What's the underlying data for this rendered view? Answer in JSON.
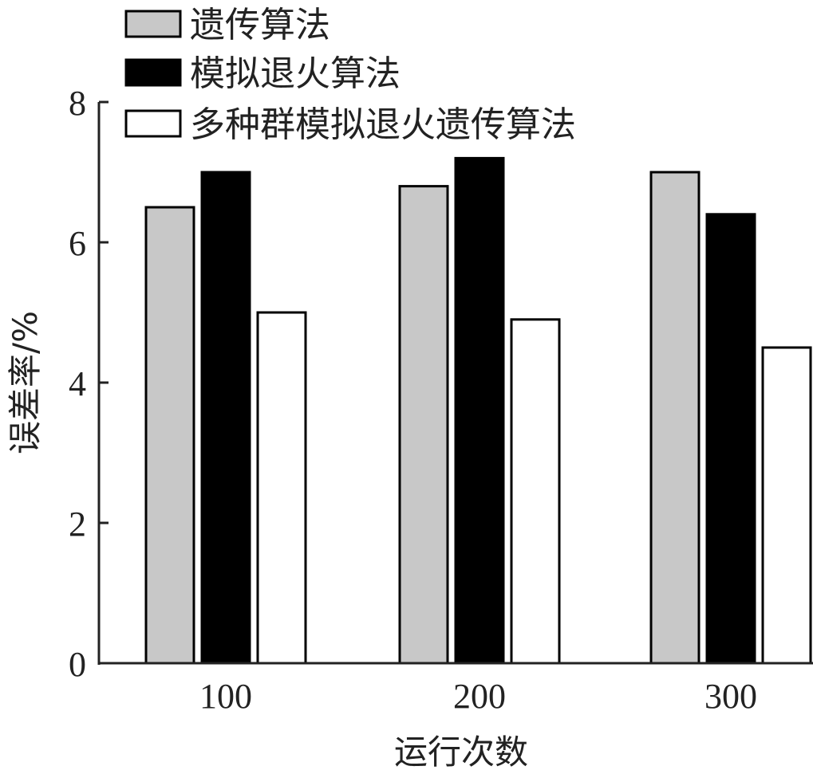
{
  "chart_data": {
    "type": "bar",
    "categories": [
      "100",
      "200",
      "300"
    ],
    "series": [
      {
        "name": "遗传算法",
        "values": [
          6.5,
          6.8,
          7.0
        ],
        "color": "#c8c8c8"
      },
      {
        "name": "模拟退火算法",
        "values": [
          7.0,
          7.2,
          6.4
        ],
        "color": "#000000"
      },
      {
        "name": "多种群模拟退火遗传算法",
        "values": [
          5.0,
          4.9,
          4.5
        ],
        "color": "#ffffff"
      }
    ],
    "xlabel": "运行次数",
    "ylabel": "误差率/%",
    "ylim": [
      0,
      8
    ],
    "yticks": [
      "0",
      "2",
      "4",
      "6",
      "8"
    ],
    "grid": false,
    "legend_position": "top-left"
  }
}
